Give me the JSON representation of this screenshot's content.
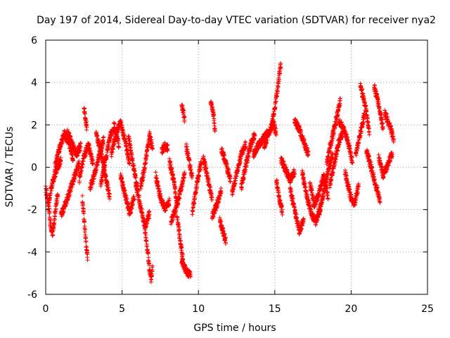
{
  "chart_data": {
    "type": "scatter",
    "title": "Day 197 of 2014, Sidereal Day-to-day VTEC variation (SDTVAR) for receiver nya2",
    "xlabel": "GPS time / hours",
    "ylabel": "SDTVAR / TECUs",
    "xlim": [
      0,
      25
    ],
    "ylim": [
      -6,
      6
    ],
    "x_ticks": [
      0,
      5,
      10,
      15,
      20,
      25
    ],
    "y_ticks": [
      -6,
      -4,
      -2,
      0,
      2,
      4,
      6
    ],
    "x_tick_labels": [
      "0",
      "5",
      "10",
      "15",
      "20",
      "25"
    ],
    "y_tick_labels": [
      "-6",
      "-4",
      "-2",
      "0",
      "2",
      "4",
      "6"
    ],
    "grid": true,
    "marker": "+",
    "series_color": "#ff0000",
    "sample_interval_hours": 0.0083,
    "series_summary": "Dense multi-satellite scatter of SDTVAR values from 0 to ~22.8 h; values mostly between -3 and +2.5 TECU with excursions to +5 near 15.3 h and -5.5 near 6.8 h.",
    "tracks": [
      {
        "x": [
          0.0,
          0.15,
          0.3,
          0.45,
          0.6,
          0.8
        ],
        "y": [
          -1.0,
          -1.6,
          -2.6,
          -3.2,
          -2.2,
          -1.2
        ]
      },
      {
        "x": [
          0.2,
          0.45,
          0.7,
          1.0
        ],
        "y": [
          -1.6,
          -0.7,
          -0.1,
          0.3
        ]
      },
      {
        "x": [
          0.6,
          0.9,
          1.2,
          1.5,
          1.8
        ],
        "y": [
          0.0,
          0.9,
          1.6,
          1.2,
          0.4
        ]
      },
      {
        "x": [
          1.0,
          1.4,
          1.8,
          2.2
        ],
        "y": [
          -2.3,
          -1.5,
          -0.6,
          0.2
        ]
      },
      {
        "x": [
          1.4,
          1.7,
          2.0,
          2.3
        ],
        "y": [
          1.7,
          1.2,
          0.6,
          1.0
        ]
      },
      {
        "x": [
          2.2,
          2.5,
          2.8,
          3.1
        ],
        "y": [
          -0.6,
          0.5,
          1.1,
          0.1
        ]
      },
      {
        "x": [
          2.4,
          2.6,
          2.75
        ],
        "y": [
          -1.5,
          -3.2,
          -4.4
        ]
      },
      {
        "x": [
          2.5,
          2.6,
          2.7
        ],
        "y": [
          2.8,
          2.3,
          1.8
        ]
      },
      {
        "x": [
          2.9,
          3.2,
          3.5,
          3.8
        ],
        "y": [
          -1.0,
          -0.3,
          0.6,
          1.3
        ]
      },
      {
        "x": [
          3.3,
          3.6,
          3.9,
          4.2
        ],
        "y": [
          1.6,
          0.8,
          -0.4,
          -1.4
        ]
      },
      {
        "x": [
          3.6,
          3.9,
          4.2,
          4.5,
          4.8
        ],
        "y": [
          -0.8,
          0.3,
          1.4,
          2.0,
          1.0
        ]
      },
      {
        "x": [
          4.3,
          4.6,
          4.9,
          5.2,
          5.5
        ],
        "y": [
          0.6,
          1.6,
          2.1,
          1.2,
          0.2
        ]
      },
      {
        "x": [
          4.9,
          5.2,
          5.5,
          5.8
        ],
        "y": [
          -0.4,
          -1.3,
          -2.2,
          -1.4
        ]
      },
      {
        "x": [
          5.4,
          5.6,
          5.8,
          6.0
        ],
        "y": [
          1.5,
          0.7,
          -0.2,
          -1.0
        ]
      },
      {
        "x": [
          5.9,
          6.2,
          6.5,
          6.8
        ],
        "y": [
          -0.8,
          -1.8,
          -2.8,
          -2.2
        ]
      },
      {
        "x": [
          6.2,
          6.5,
          6.8,
          7.0
        ],
        "y": [
          -1.0,
          0.1,
          1.5,
          0.9
        ]
      },
      {
        "x": [
          6.5,
          6.7,
          6.9,
          7.0
        ],
        "y": [
          -3.0,
          -4.2,
          -5.4,
          -4.6
        ]
      },
      {
        "x": [
          7.2,
          7.5,
          7.8,
          8.1
        ],
        "y": [
          -0.4,
          -1.4,
          -2.0,
          -1.6
        ]
      },
      {
        "x": [
          7.6,
          7.8,
          8.0
        ],
        "y": [
          0.8,
          1.0,
          0.9
        ]
      },
      {
        "x": [
          8.1,
          8.4,
          8.6
        ],
        "y": [
          0.3,
          -0.7,
          -1.7
        ]
      },
      {
        "x": [
          8.2,
          8.5,
          8.8,
          9.1
        ],
        "y": [
          -2.6,
          -2.0,
          -1.2,
          -0.3
        ]
      },
      {
        "x": [
          8.6,
          8.8,
          9.0
        ],
        "y": [
          -2.3,
          -3.4,
          -4.4
        ]
      },
      {
        "x": [
          8.9,
          9.2,
          9.5
        ],
        "y": [
          -4.4,
          -4.9,
          -5.1
        ]
      },
      {
        "x": [
          8.9,
          9.0,
          9.1
        ],
        "y": [
          3.0,
          2.6,
          2.2
        ]
      },
      {
        "x": [
          9.2,
          9.4,
          9.6
        ],
        "y": [
          1.0,
          0.3,
          -0.5
        ]
      },
      {
        "x": [
          9.6,
          9.9,
          10.2
        ],
        "y": [
          -2.1,
          -0.8,
          0.3
        ]
      },
      {
        "x": [
          10.3,
          10.6,
          10.9
        ],
        "y": [
          0.5,
          -0.5,
          -1.5
        ]
      },
      {
        "x": [
          10.8,
          11.0,
          11.1
        ],
        "y": [
          3.2,
          2.4,
          1.6
        ]
      },
      {
        "x": [
          10.9,
          11.2,
          11.5
        ],
        "y": [
          -2.3,
          -1.8,
          -1.1
        ]
      },
      {
        "x": [
          11.4,
          11.6,
          11.8
        ],
        "y": [
          -2.5,
          -3.0,
          -3.5
        ]
      },
      {
        "x": [
          11.5,
          11.8,
          12.1
        ],
        "y": [
          0.9,
          0.2,
          -0.6
        ]
      },
      {
        "x": [
          12.2,
          12.5,
          12.8,
          13.1
        ],
        "y": [
          -1.2,
          -0.3,
          0.6,
          1.1
        ]
      },
      {
        "x": [
          12.8,
          13.1,
          13.4,
          13.7
        ],
        "y": [
          -1.0,
          0.1,
          1.0,
          1.6
        ]
      },
      {
        "x": [
          13.6,
          13.9,
          14.2,
          14.5
        ],
        "y": [
          0.6,
          1.0,
          1.3,
          1.6
        ]
      },
      {
        "x": [
          14.3,
          14.6,
          14.9,
          15.1
        ],
        "y": [
          1.0,
          1.6,
          2.1,
          1.6
        ]
      },
      {
        "x": [
          14.8,
          15.0,
          15.2,
          15.4
        ],
        "y": [
          2.0,
          2.8,
          3.8,
          4.9
        ]
      },
      {
        "x": [
          15.1,
          15.3,
          15.5
        ],
        "y": [
          -0.6,
          -1.5,
          -2.1
        ]
      },
      {
        "x": [
          15.4,
          15.7,
          16.0,
          16.3
        ],
        "y": [
          0.4,
          -0.1,
          -0.6,
          -0.2
        ]
      },
      {
        "x": [
          16.0,
          16.3,
          16.6,
          16.9
        ],
        "y": [
          -1.0,
          -2.0,
          -3.0,
          -2.5
        ]
      },
      {
        "x": [
          16.3,
          16.6,
          16.9,
          17.2
        ],
        "y": [
          2.2,
          1.8,
          1.2,
          0.6
        ]
      },
      {
        "x": [
          16.8,
          17.1,
          17.4,
          17.7,
          18.0
        ],
        "y": [
          -0.3,
          -1.4,
          -2.2,
          -2.6,
          -1.8
        ]
      },
      {
        "x": [
          17.3,
          17.6,
          17.9,
          18.2,
          18.5
        ],
        "y": [
          -0.8,
          -1.8,
          -1.2,
          -0.4,
          -1.4
        ]
      },
      {
        "x": [
          17.9,
          18.2,
          18.5,
          18.8
        ],
        "y": [
          -2.2,
          -1.2,
          -0.2,
          0.6
        ]
      },
      {
        "x": [
          18.4,
          18.7,
          19.0,
          19.3
        ],
        "y": [
          0.2,
          1.2,
          2.2,
          3.2
        ]
      },
      {
        "x": [
          18.6,
          18.9,
          19.2,
          19.5
        ],
        "y": [
          -0.8,
          0.2,
          1.2,
          1.8
        ]
      },
      {
        "x": [
          19.2,
          19.5,
          19.8,
          20.1
        ],
        "y": [
          2.2,
          1.8,
          1.2,
          0.2
        ]
      },
      {
        "x": [
          19.6,
          19.9,
          20.2,
          20.5
        ],
        "y": [
          -0.2,
          -1.2,
          -1.8,
          -0.8
        ]
      },
      {
        "x": [
          20.3,
          20.6,
          20.9
        ],
        "y": [
          0.6,
          1.6,
          2.6
        ]
      },
      {
        "x": [
          20.6,
          20.8,
          21.0,
          21.2
        ],
        "y": [
          3.8,
          3.3,
          2.6,
          1.6
        ]
      },
      {
        "x": [
          21.0,
          21.3,
          21.6,
          21.9
        ],
        "y": [
          0.8,
          0.0,
          -0.8,
          -1.6
        ]
      },
      {
        "x": [
          21.5,
          21.7,
          21.9,
          22.1
        ],
        "y": [
          3.8,
          3.3,
          2.6,
          1.8
        ]
      },
      {
        "x": [
          21.8,
          22.1,
          22.4,
          22.7
        ],
        "y": [
          0.5,
          -0.4,
          0.1,
          0.7
        ]
      },
      {
        "x": [
          22.2,
          22.4,
          22.6,
          22.8
        ],
        "y": [
          2.6,
          2.2,
          1.8,
          1.3
        ]
      }
    ]
  }
}
